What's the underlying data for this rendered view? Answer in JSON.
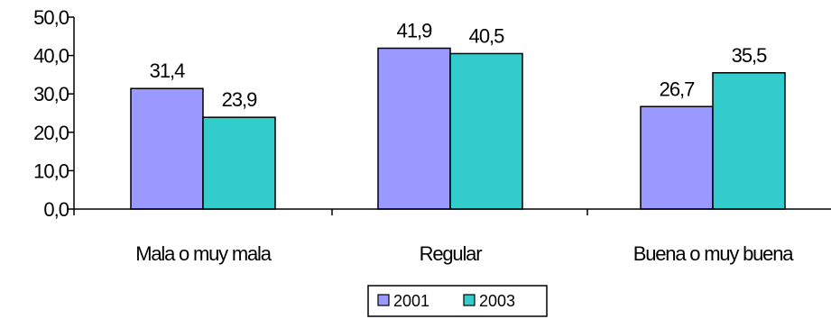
{
  "chart_data": {
    "type": "bar",
    "categories": [
      "Mala o muy mala",
      "Regular",
      "Buena o muy buena"
    ],
    "series": [
      {
        "name": "2001",
        "values": [
          31.4,
          41.9,
          26.7
        ],
        "labels": [
          "31,4",
          "41,9",
          "26,7"
        ],
        "color": "#9999ff"
      },
      {
        "name": "2003",
        "values": [
          23.9,
          40.5,
          35.5
        ],
        "labels": [
          "23,9",
          "40,5",
          "35,5"
        ],
        "color": "#33cccc"
      }
    ],
    "ylim": [
      0,
      50
    ],
    "yticks": [
      0,
      10,
      20,
      30,
      40,
      50
    ],
    "ytick_labels": [
      "0,0",
      "10,0",
      "20,0",
      "30,0",
      "40,0",
      "50,0"
    ],
    "title": "",
    "xlabel": "",
    "ylabel": "",
    "grid": false,
    "legend_position": "bottom-center"
  }
}
